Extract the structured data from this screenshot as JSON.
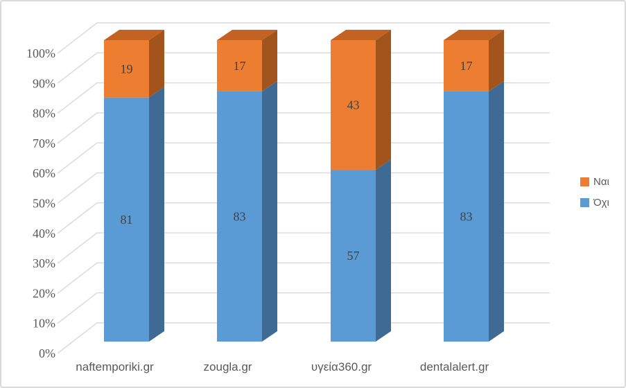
{
  "chart_data": {
    "type": "bar",
    "subtype": "stacked-100-percent-3d-column",
    "title": "",
    "xlabel": "",
    "ylabel": "",
    "categories": [
      "naftemporiki.gr",
      "zougla.gr",
      "υγεία360.gr",
      "dentalalert.gr"
    ],
    "series": [
      {
        "name": "Ναι",
        "values": [
          19,
          17,
          43,
          17
        ]
      },
      {
        "name": "Όχι",
        "values": [
          81,
          83,
          57,
          83
        ]
      }
    ],
    "stack_bottom_to_top": [
      "Όχι",
      "Ναι"
    ],
    "ylim": [
      0,
      100
    ],
    "ytick_step": 10,
    "ytick_labels": [
      "0%",
      "10%",
      "20%",
      "30%",
      "40%",
      "50%",
      "60%",
      "70%",
      "80%",
      "90%",
      "100%"
    ],
    "grid": true,
    "legend_position": "right",
    "legend_order": [
      "Ναι",
      "Όχι"
    ]
  },
  "style": {
    "series_colors": {
      "Ναι": {
        "front": "#ED7D31",
        "side": "#A2541C",
        "top": "#C26324"
      },
      "Όχι": {
        "front": "#5B9BD5",
        "side": "#3E6A94",
        "top": "#4E86B8"
      }
    },
    "gridline_color": "#D9D9D9",
    "border_color": "#D9D9D9",
    "axis_text_color": "#595959",
    "data_label_color": "#404040",
    "background_color": "#FFFFFF"
  }
}
